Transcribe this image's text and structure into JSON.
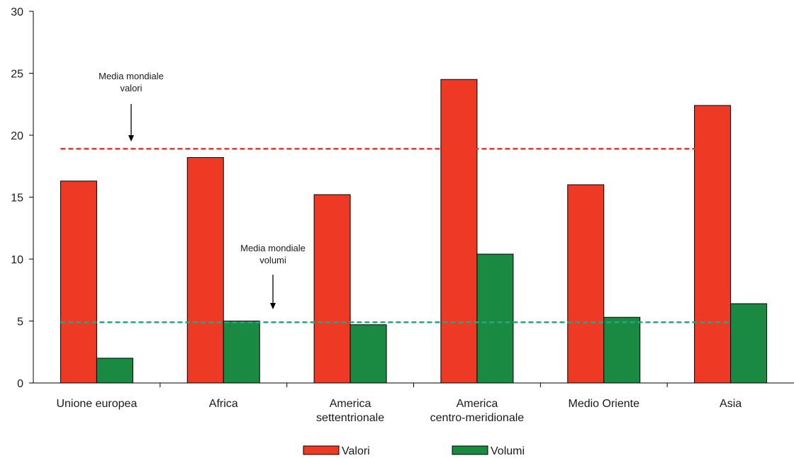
{
  "chart_data": {
    "type": "bar",
    "categories": [
      [
        "Unione europea"
      ],
      [
        "Africa"
      ],
      [
        "America",
        "settentrionale"
      ],
      [
        "America",
        "centro-meridionale"
      ],
      [
        "Medio Oriente"
      ],
      [
        "Asia"
      ]
    ],
    "series": [
      {
        "name": "Valori",
        "color": "#ee3a24",
        "values": [
          16.3,
          18.2,
          15.2,
          24.5,
          16.0,
          22.4
        ]
      },
      {
        "name": "Volumi",
        "color": "#1a8a43",
        "values": [
          2.0,
          5.0,
          4.7,
          10.4,
          5.3,
          6.4
        ]
      }
    ],
    "ylim": [
      0,
      30
    ],
    "yticks": [
      0,
      5,
      10,
      15,
      20,
      25,
      30
    ],
    "grid": false,
    "legend_position": "bottom-center",
    "reference_lines": [
      {
        "label": [
          "Media mondiale",
          "valori"
        ],
        "value": 18.9,
        "color": "#ee3a24",
        "style": "dashed",
        "from_category": 0,
        "to_category": 5
      },
      {
        "label": [
          "Media mondiale",
          "volumi"
        ],
        "value": 4.9,
        "color": "#2aa57a",
        "style": "dashed",
        "from_category": 0,
        "to_category": 5
      }
    ],
    "title": "",
    "xlabel": "",
    "ylabel": ""
  }
}
